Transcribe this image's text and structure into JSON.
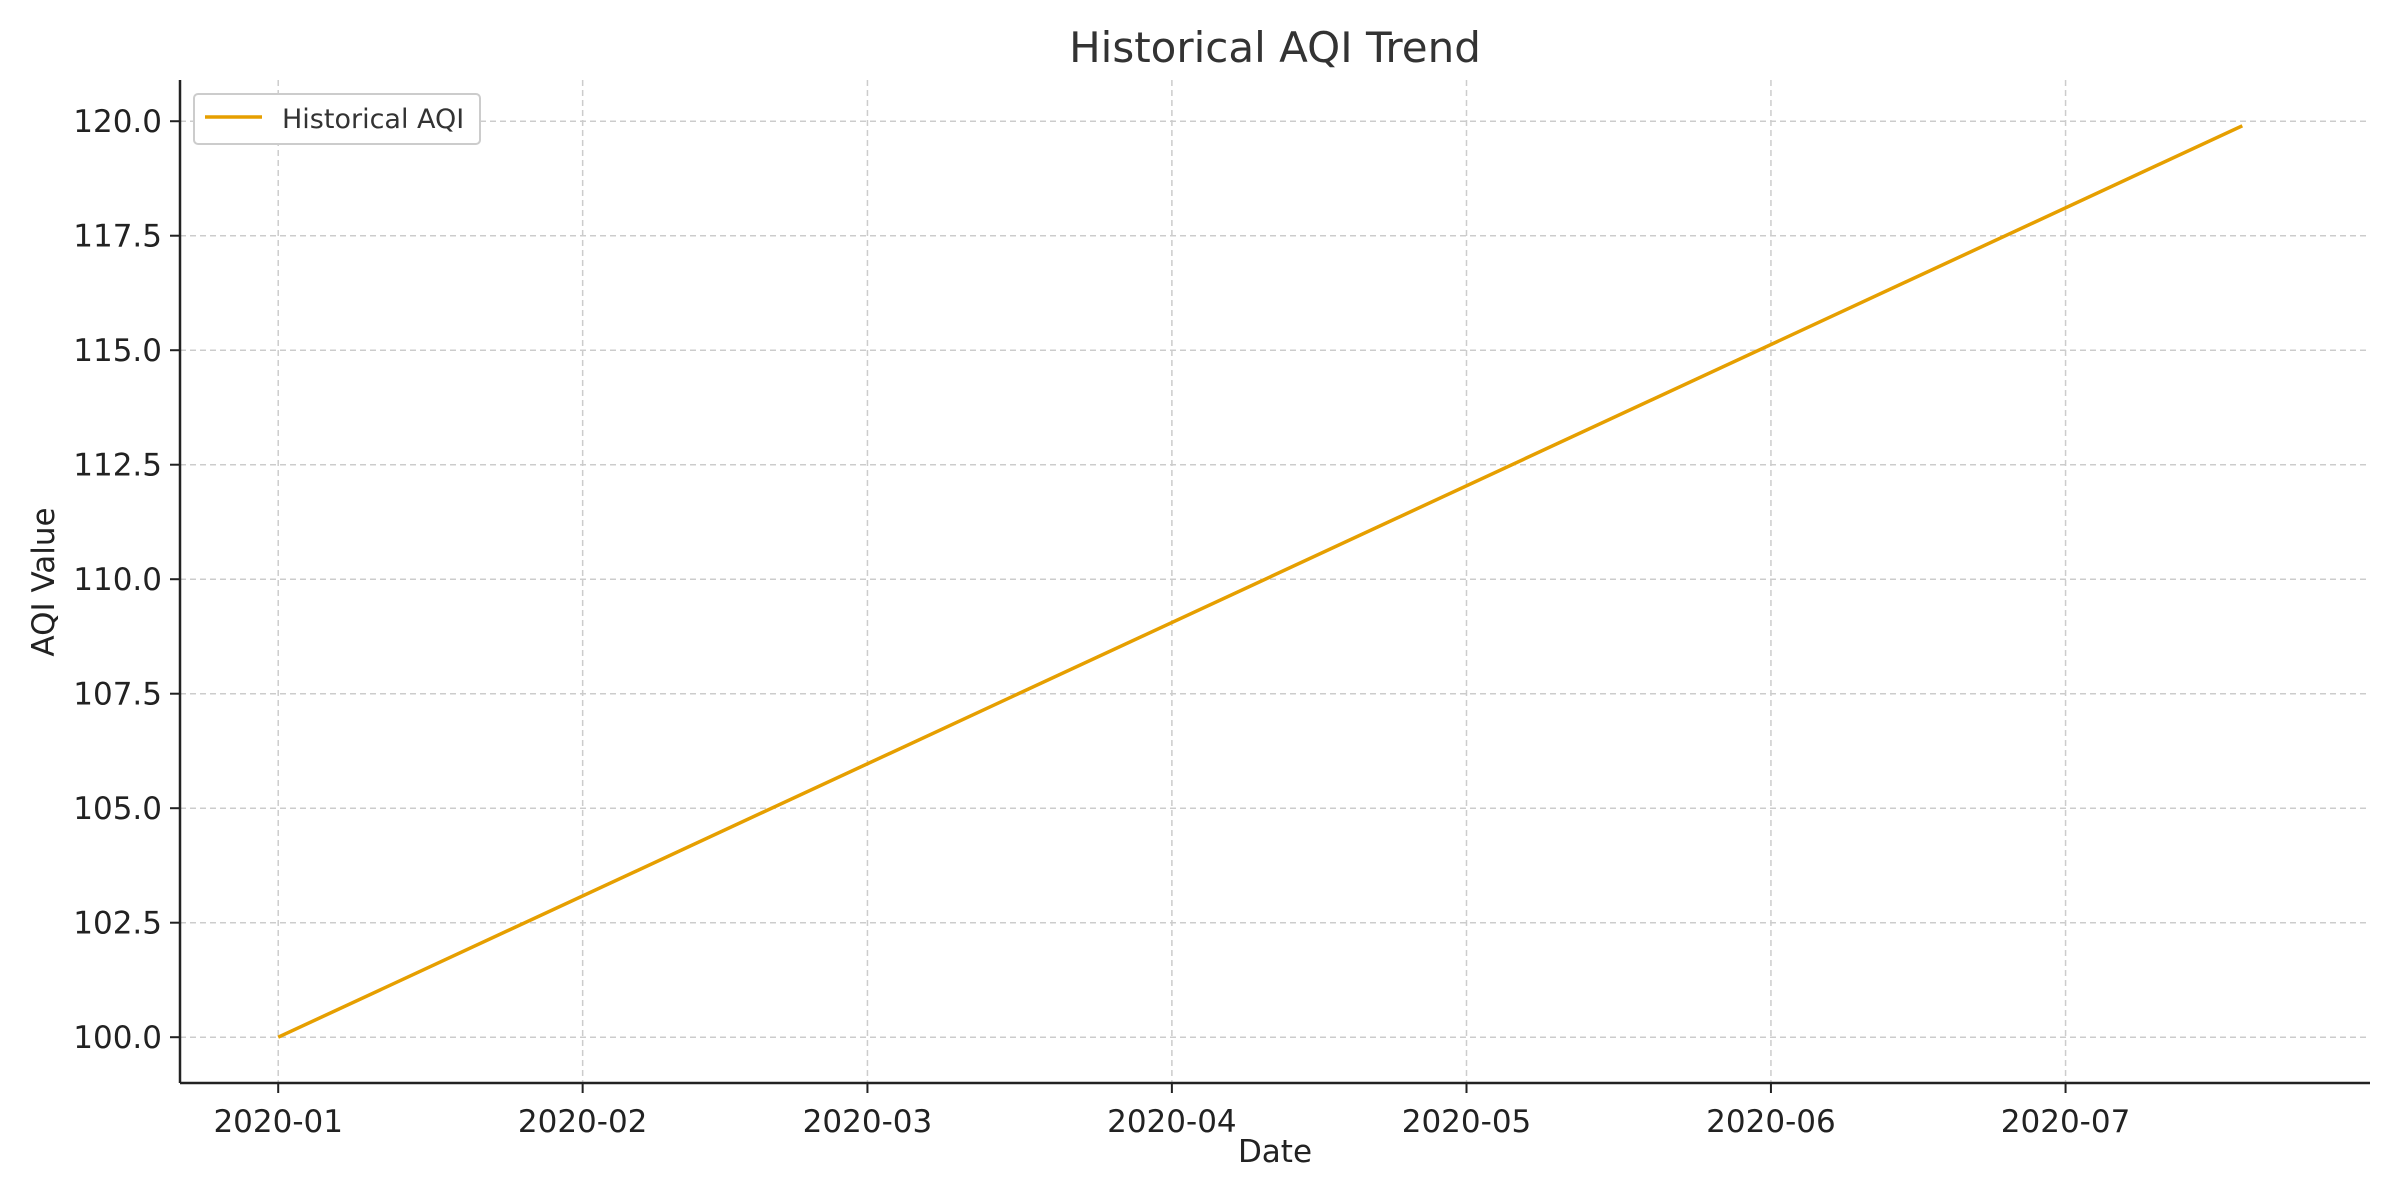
{
  "chart_data": {
    "type": "line",
    "title": "Historical AQI Trend",
    "xlabel": "Date",
    "ylabel": "AQI Value",
    "x_tick_labels": [
      "2020-01",
      "2020-02",
      "2020-03",
      "2020-04",
      "2020-05",
      "2020-06",
      "2020-07"
    ],
    "x_tick_dates": [
      "2020-01-01",
      "2020-02-01",
      "2020-03-01",
      "2020-04-01",
      "2020-05-01",
      "2020-06-01",
      "2020-07-01"
    ],
    "y_tick_labels": [
      "100.0",
      "102.5",
      "105.0",
      "107.5",
      "110.0",
      "112.5",
      "115.0",
      "117.5",
      "120.0"
    ],
    "y_ticks": [
      100,
      102.5,
      105,
      107.5,
      110,
      112.5,
      115,
      117.5,
      120
    ],
    "xlim": [
      "2019-12-22",
      "2020-08-01"
    ],
    "ylim": [
      99.0,
      120.9
    ],
    "grid": true,
    "legend_position": "top-left",
    "series": [
      {
        "name": "Historical AQI",
        "color": "#E69F00",
        "x": [
          "2020-01-01",
          "2020-07-19"
        ],
        "y": [
          100.0,
          119.9
        ]
      }
    ]
  }
}
